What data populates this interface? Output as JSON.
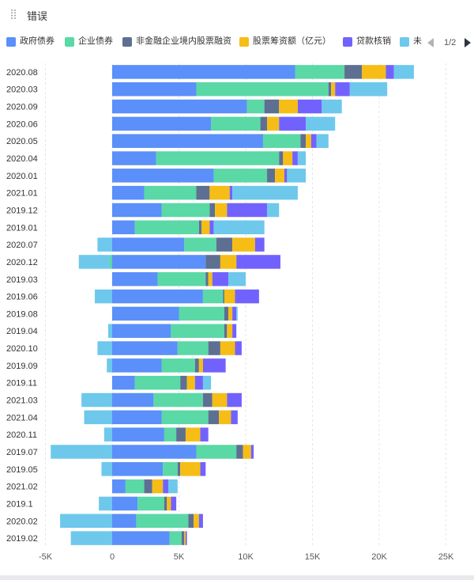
{
  "header": {
    "title": "错误",
    "drag_icon": "drag-handle-icon"
  },
  "legend": {
    "items": [
      {
        "name": "政府债券",
        "color": "#5B8FF9"
      },
      {
        "name": "企业债券",
        "color": "#5AD8A6"
      },
      {
        "name": "非金融企业境内股票融资",
        "color": "#5D7092"
      },
      {
        "name": "股票筹资额（亿元）",
        "color": "#F6BD16"
      },
      {
        "name": "贷款核销",
        "color": "#7262FD"
      },
      {
        "name": "未",
        "color": "#6DC8EC"
      }
    ],
    "page": "1/2",
    "prev_icon": "caret-left-icon",
    "next_icon": "caret-right-icon"
  },
  "chart_data": {
    "type": "bar",
    "orientation": "horizontal",
    "stacked": true,
    "xlim": [
      -5000,
      25000
    ],
    "xticks": [
      -5000,
      0,
      5000,
      10000,
      15000,
      20000,
      25000
    ],
    "xtick_labels": [
      "-5K",
      "0",
      "5K",
      "10K",
      "15K",
      "20K",
      "25K"
    ],
    "categories": [
      "2020.08",
      "2020.03",
      "2020.09",
      "2020.06",
      "2020.05",
      "2020.04",
      "2020.01",
      "2021.01",
      "2019.12",
      "2019.01",
      "2020.07",
      "2020.12",
      "2019.03",
      "2019.06",
      "2019.08",
      "2019.04",
      "2020.10",
      "2019.09",
      "2019.11",
      "2021.03",
      "2021.04",
      "2020.11",
      "2019.07",
      "2019.05",
      "2021.02",
      "2019.1",
      "2020.02",
      "2019.02"
    ],
    "series": [
      {
        "name": "政府债券",
        "values": [
          13700,
          6300,
          10100,
          7400,
          11300,
          3300,
          7600,
          2400,
          3700,
          1700,
          5400,
          7000,
          3400,
          6800,
          5000,
          4400,
          4900,
          3700,
          1700,
          3100,
          3700,
          3900,
          6300,
          3800,
          1000,
          1900,
          1800,
          4300
        ]
      },
      {
        "name": "企业债券",
        "values": [
          3700,
          9900,
          1300,
          3700,
          2800,
          9200,
          4000,
          3900,
          3600,
          4800,
          2400,
          -200,
          3600,
          1500,
          3400,
          4000,
          2300,
          2500,
          3400,
          3700,
          3500,
          900,
          3000,
          1100,
          1400,
          2000,
          3900,
          900
        ]
      },
      {
        "name": "非金融企业境内股票融资",
        "values": [
          1300,
          200,
          1100,
          500,
          400,
          300,
          600,
          1000,
          400,
          200,
          1200,
          1100,
          200,
          100,
          300,
          200,
          900,
          300,
          500,
          700,
          800,
          700,
          500,
          200,
          600,
          200,
          400,
          200
        ]
      },
      {
        "name": "股票筹资额（亿元）",
        "values": [
          1800,
          300,
          1400,
          900,
          400,
          700,
          700,
          1500,
          900,
          600,
          1700,
          1200,
          300,
          800,
          300,
          400,
          1100,
          300,
          600,
          1100,
          900,
          1100,
          600,
          1500,
          800,
          300,
          400,
          100
        ]
      },
      {
        "name": "贷款核销",
        "values": [
          600,
          1100,
          1800,
          2000,
          400,
          400,
          200,
          200,
          3000,
          300,
          700,
          3300,
          1200,
          1800,
          300,
          300,
          500,
          1700,
          600,
          1100,
          500,
          600,
          200,
          400,
          400,
          400,
          300,
          100
        ]
      },
      {
        "name": "未",
        "values": [
          1500,
          2800,
          1500,
          2200,
          900,
          600,
          1400,
          4900,
          900,
          3800,
          -1100,
          -2300,
          1300,
          -1300,
          100,
          -300,
          -1100,
          -400,
          600,
          -2300,
          -2100,
          -600,
          -4600,
          -800,
          700,
          -1000,
          -3900,
          -3100
        ]
      }
    ]
  }
}
